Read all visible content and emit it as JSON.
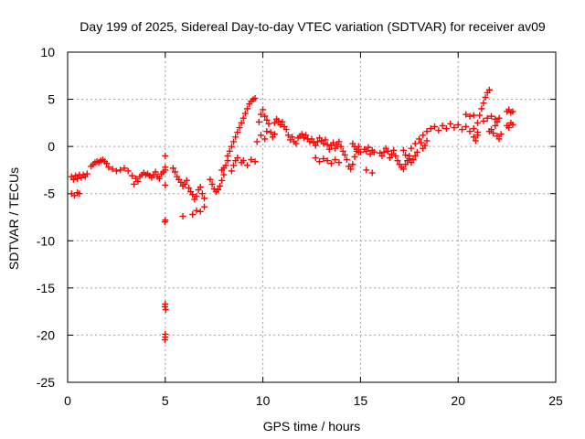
{
  "chart_data": {
    "type": "scatter",
    "title": "Day 199 of 2025, Sidereal Day-to-day VTEC variation (SDTVAR) for receiver av09",
    "xlabel": "GPS time / hours",
    "ylabel": "SDTVAR / TECUs",
    "xlim": [
      0,
      25
    ],
    "ylim": [
      -25,
      10
    ],
    "xticks": [
      "0",
      "5",
      "10",
      "15",
      "20",
      "25"
    ],
    "yticks": [
      "-25",
      "-20",
      "-15",
      "-10",
      "-5",
      "0",
      "5",
      "10"
    ],
    "grid": true,
    "marker": "+",
    "color": "#ff0000",
    "series": [
      {
        "name": "SDTVAR",
        "points": [
          [
            0.2,
            -3.2
          ],
          [
            0.3,
            -3.5
          ],
          [
            0.4,
            -3.1
          ],
          [
            0.5,
            -3.4
          ],
          [
            0.6,
            -3.0
          ],
          [
            0.7,
            -3.3
          ],
          [
            0.8,
            -3.0
          ],
          [
            0.9,
            -3.2
          ],
          [
            1.0,
            -2.9
          ],
          [
            0.2,
            -5.0
          ],
          [
            0.35,
            -5.2
          ],
          [
            0.5,
            -4.9
          ],
          [
            0.6,
            -5.0
          ],
          [
            1.2,
            -2.1
          ],
          [
            1.3,
            -1.9
          ],
          [
            1.4,
            -1.7
          ],
          [
            1.5,
            -1.6
          ],
          [
            1.6,
            -1.7
          ],
          [
            1.7,
            -1.5
          ],
          [
            1.8,
            -1.4
          ],
          [
            1.9,
            -1.6
          ],
          [
            2.0,
            -1.8
          ],
          [
            2.1,
            -2.2
          ],
          [
            2.3,
            -2.4
          ],
          [
            2.5,
            -2.6
          ],
          [
            2.7,
            -2.5
          ],
          [
            2.9,
            -2.3
          ],
          [
            3.1,
            -2.6
          ],
          [
            3.3,
            -3.1
          ],
          [
            3.5,
            -3.4
          ],
          [
            3.4,
            -4.0
          ],
          [
            3.6,
            -3.7
          ],
          [
            3.7,
            -3.2
          ],
          [
            3.8,
            -3.0
          ],
          [
            3.9,
            -2.8
          ],
          [
            4.0,
            -3.0
          ],
          [
            4.1,
            -2.9
          ],
          [
            4.2,
            -3.1
          ],
          [
            4.3,
            -3.3
          ],
          [
            4.4,
            -3.0
          ],
          [
            4.5,
            -2.7
          ],
          [
            4.6,
            -3.2
          ],
          [
            4.7,
            -3.4
          ],
          [
            4.8,
            -2.9
          ],
          [
            4.9,
            -2.7
          ],
          [
            5.0,
            -2.5
          ],
          [
            5.0,
            -1.0
          ],
          [
            5.0,
            -2.2
          ],
          [
            5.0,
            -4.1
          ],
          [
            5.0,
            -7.8
          ],
          [
            4.98,
            -8.0
          ],
          [
            5.0,
            -16.7
          ],
          [
            4.98,
            -17.0
          ],
          [
            5.02,
            -17.3
          ],
          [
            5.0,
            -19.9
          ],
          [
            5.0,
            -20.2
          ],
          [
            4.98,
            -20.5
          ],
          [
            5.4,
            -2.3
          ],
          [
            5.5,
            -2.7
          ],
          [
            5.6,
            -3.2
          ],
          [
            5.7,
            -3.5
          ],
          [
            5.8,
            -3.8
          ],
          [
            5.9,
            -4.2
          ],
          [
            6.0,
            -4.0
          ],
          [
            6.1,
            -3.6
          ],
          [
            5.9,
            -7.4
          ],
          [
            6.2,
            -4.4
          ],
          [
            6.3,
            -4.8
          ],
          [
            6.4,
            -5.1
          ],
          [
            6.5,
            -5.6
          ],
          [
            6.6,
            -5.3
          ],
          [
            6.7,
            -4.6
          ],
          [
            6.8,
            -4.3
          ],
          [
            6.4,
            -7.2
          ],
          [
            6.6,
            -6.8
          ],
          [
            6.8,
            -6.9
          ],
          [
            7.0,
            -6.4
          ],
          [
            7.0,
            -5.5
          ],
          [
            6.9,
            -5.0
          ],
          [
            7.3,
            -3.5
          ],
          [
            7.4,
            -4.0
          ],
          [
            7.5,
            -4.5
          ],
          [
            7.6,
            -4.8
          ],
          [
            7.7,
            -4.6
          ],
          [
            7.8,
            -4.2
          ],
          [
            7.9,
            -3.6
          ],
          [
            8.0,
            -3.0
          ],
          [
            7.9,
            -2.5
          ],
          [
            8.0,
            -2.3
          ],
          [
            8.1,
            -2.0
          ],
          [
            8.2,
            -1.5
          ],
          [
            8.2,
            -1.0
          ],
          [
            8.3,
            -0.5
          ],
          [
            8.4,
            0.0
          ],
          [
            8.5,
            0.5
          ],
          [
            8.6,
            1.0
          ],
          [
            8.7,
            1.5
          ],
          [
            8.8,
            2.0
          ],
          [
            8.9,
            2.5
          ],
          [
            9.0,
            3.0
          ],
          [
            9.1,
            3.5
          ],
          [
            9.2,
            4.0
          ],
          [
            9.3,
            4.5
          ],
          [
            9.4,
            4.8
          ],
          [
            9.5,
            5.0
          ],
          [
            9.6,
            5.1
          ],
          [
            8.4,
            -2.6
          ],
          [
            8.5,
            -2.0
          ],
          [
            8.6,
            -1.5
          ],
          [
            8.7,
            -1.2
          ],
          [
            8.9,
            -1.7
          ],
          [
            9.0,
            -1.5
          ],
          [
            9.2,
            -2.0
          ],
          [
            9.4,
            -1.4
          ],
          [
            9.6,
            -1.6
          ],
          [
            9.8,
            2.6
          ],
          [
            9.9,
            3.4
          ],
          [
            10.0,
            3.9
          ],
          [
            10.1,
            3.2
          ],
          [
            10.2,
            2.8
          ],
          [
            10.3,
            2.4
          ],
          [
            10.4,
            1.5
          ],
          [
            10.5,
            1.0
          ],
          [
            10.6,
            1.3
          ],
          [
            9.7,
            0.5
          ],
          [
            9.9,
            1.2
          ],
          [
            10.1,
            0.8
          ],
          [
            10.2,
            1.6
          ],
          [
            10.6,
            2.5
          ],
          [
            10.7,
            2.9
          ],
          [
            10.8,
            2.7
          ],
          [
            10.9,
            2.3
          ],
          [
            11.0,
            2.6
          ],
          [
            11.1,
            2.1
          ],
          [
            11.2,
            1.8
          ],
          [
            11.3,
            1.2
          ],
          [
            11.4,
            0.7
          ],
          [
            11.5,
            1.0
          ],
          [
            11.6,
            0.5
          ],
          [
            11.7,
            0.3
          ],
          [
            11.8,
            0.9
          ],
          [
            11.9,
            1.1
          ],
          [
            12.0,
            1.3
          ],
          [
            12.1,
            0.9
          ],
          [
            12.2,
            1.2
          ],
          [
            12.3,
            0.8
          ],
          [
            12.4,
            0.5
          ],
          [
            12.5,
            0.8
          ],
          [
            12.6,
            0.4
          ],
          [
            12.7,
            0.1
          ],
          [
            12.8,
            0.5
          ],
          [
            12.9,
            0.9
          ],
          [
            13.0,
            0.6
          ],
          [
            13.1,
            0.3
          ],
          [
            13.2,
            0.7
          ],
          [
            13.3,
            0.2
          ],
          [
            13.4,
            -0.3
          ],
          [
            13.5,
            0.1
          ],
          [
            13.6,
            0.4
          ],
          [
            12.7,
            -1.2
          ],
          [
            12.9,
            -1.6
          ],
          [
            13.1,
            -1.3
          ],
          [
            13.3,
            -1.5
          ],
          [
            13.5,
            -1.8
          ],
          [
            13.7,
            -1.4
          ],
          [
            13.9,
            -1.7
          ],
          [
            13.7,
            -0.2
          ],
          [
            13.8,
            0.2
          ],
          [
            13.9,
            0.5
          ],
          [
            14.0,
            0.0
          ],
          [
            14.1,
            -0.5
          ],
          [
            14.2,
            -0.9
          ],
          [
            14.3,
            -1.4
          ],
          [
            14.4,
            -2.1
          ],
          [
            14.5,
            -2.4
          ],
          [
            14.6,
            -1.9
          ],
          [
            14.7,
            -1.1
          ],
          [
            14.8,
            -0.5
          ],
          [
            14.9,
            0.0
          ],
          [
            15.0,
            -0.6
          ],
          [
            14.6,
            0.3
          ],
          [
            14.7,
            0.0
          ],
          [
            14.8,
            -0.3
          ],
          [
            14.9,
            -0.6
          ],
          [
            15.2,
            -0.3
          ],
          [
            15.3,
            -0.5
          ],
          [
            15.4,
            -0.1
          ],
          [
            15.5,
            -0.8
          ],
          [
            15.6,
            -0.4
          ],
          [
            15.7,
            -0.6
          ],
          [
            15.3,
            -2.5
          ],
          [
            15.6,
            -2.8
          ],
          [
            16.0,
            -0.7
          ],
          [
            16.1,
            -1.0
          ],
          [
            16.2,
            -0.6
          ],
          [
            16.3,
            -0.2
          ],
          [
            16.4,
            -0.5
          ],
          [
            16.5,
            -1.2
          ],
          [
            16.6,
            -0.8
          ],
          [
            16.7,
            -0.4
          ],
          [
            16.8,
            -1.0
          ],
          [
            16.9,
            -1.5
          ],
          [
            17.0,
            -1.9
          ],
          [
            17.1,
            -2.2
          ],
          [
            17.2,
            -2.4
          ],
          [
            17.3,
            -1.9
          ],
          [
            17.4,
            -1.5
          ],
          [
            17.5,
            -1.0
          ],
          [
            17.2,
            -0.4
          ],
          [
            17.3,
            -0.9
          ],
          [
            17.5,
            -1.3
          ],
          [
            17.6,
            -1.7
          ],
          [
            17.7,
            -1.4
          ],
          [
            17.8,
            -1.0
          ],
          [
            17.9,
            -0.6
          ],
          [
            17.6,
            -0.2
          ],
          [
            17.8,
            0.3
          ],
          [
            18.0,
            0.8
          ],
          [
            18.1,
            0.4
          ],
          [
            18.2,
            -0.2
          ],
          [
            18.3,
            0.1
          ],
          [
            18.4,
            0.6
          ],
          [
            18.2,
            1.2
          ],
          [
            18.4,
            1.6
          ],
          [
            18.6,
            1.9
          ],
          [
            18.8,
            2.1
          ],
          [
            19.0,
            1.7
          ],
          [
            19.2,
            2.2
          ],
          [
            19.4,
            1.9
          ],
          [
            19.6,
            2.4
          ],
          [
            19.8,
            2.0
          ],
          [
            20.0,
            2.3
          ],
          [
            20.2,
            1.8
          ],
          [
            20.4,
            2.1
          ],
          [
            20.6,
            1.6
          ],
          [
            20.8,
            1.9
          ],
          [
            21.0,
            1.5
          ],
          [
            20.4,
            3.4
          ],
          [
            20.6,
            3.2
          ],
          [
            20.8,
            3.3
          ],
          [
            20.8,
            1.0
          ],
          [
            21.0,
            1.2
          ],
          [
            20.9,
            0.6
          ],
          [
            21.0,
            2.5
          ],
          [
            21.1,
            3.3
          ],
          [
            21.2,
            4.0
          ],
          [
            21.3,
            4.6
          ],
          [
            21.4,
            5.2
          ],
          [
            21.5,
            5.7
          ],
          [
            21.6,
            6.0
          ],
          [
            21.3,
            2.7
          ],
          [
            21.5,
            3.0
          ],
          [
            21.7,
            3.2
          ],
          [
            21.9,
            2.9
          ],
          [
            22.0,
            2.6
          ],
          [
            22.1,
            3.0
          ],
          [
            21.9,
            2.2
          ],
          [
            21.7,
            1.8
          ],
          [
            21.8,
            1.4
          ],
          [
            22.0,
            1.1
          ],
          [
            22.1,
            0.8
          ],
          [
            22.2,
            1.3
          ],
          [
            21.6,
            1.6
          ],
          [
            22.5,
            2.2
          ],
          [
            22.6,
            2.0
          ],
          [
            22.7,
            2.5
          ],
          [
            22.8,
            2.3
          ],
          [
            22.5,
            3.7
          ],
          [
            22.6,
            3.9
          ],
          [
            22.7,
            3.6
          ],
          [
            22.8,
            3.7
          ]
        ]
      }
    ]
  }
}
